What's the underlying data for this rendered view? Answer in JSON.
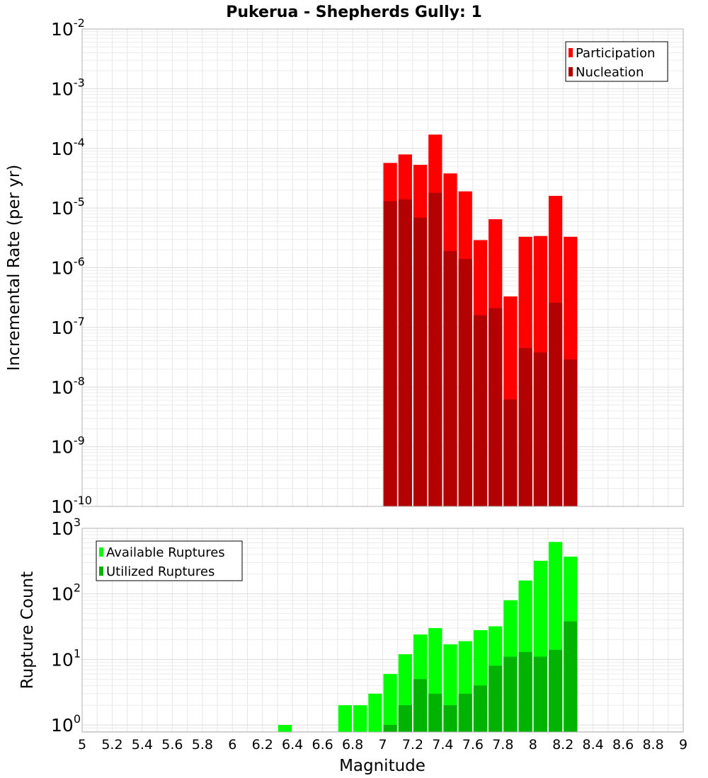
{
  "chart_data": {
    "type": "bar",
    "title": "Pukerua - Shepherds Gully: 1",
    "xlabel": "Magnitude",
    "x_ticks": [
      "5",
      "5.2",
      "5.4",
      "5.6",
      "5.8",
      "6",
      "6.2",
      "6.4",
      "6.6",
      "6.8",
      "7",
      "7.2",
      "7.4",
      "7.6",
      "7.8",
      "8",
      "8.2",
      "8.4",
      "8.6",
      "8.8",
      "9"
    ],
    "xlim": [
      5,
      9
    ],
    "bin_width": 0.1,
    "grid": true,
    "panels": [
      {
        "ylabel": "Incremental Rate (per yr)",
        "yscale": "log",
        "ylim": [
          1e-10,
          0.01
        ],
        "y_tick_exponents": [
          "-10",
          "-9",
          "-8",
          "-7",
          "-6",
          "-5",
          "-4",
          "-3",
          "-2"
        ],
        "legend_position": "top-right",
        "series": [
          {
            "name": "Participation",
            "color": "#ff0000",
            "x": [
              7.05,
              7.15,
              7.25,
              7.35,
              7.45,
              7.55,
              7.65,
              7.75,
              7.85,
              7.95,
              8.05,
              8.15,
              8.25
            ],
            "values": [
              5.7e-05,
              7.9e-05,
              5.3e-05,
              0.00017,
              3.8e-05,
              1.9e-05,
              2.9e-06,
              6.5e-06,
              3.3e-07,
              3.3e-06,
              3.4e-06,
              1.6e-05,
              3.3e-06
            ]
          },
          {
            "name": "Nucleation",
            "color": "#b30000",
            "x": [
              7.05,
              7.15,
              7.25,
              7.35,
              7.45,
              7.55,
              7.65,
              7.75,
              7.85,
              7.95,
              8.05,
              8.15,
              8.25
            ],
            "values": [
              1.3e-05,
              1.4e-05,
              6.9e-06,
              1.8e-05,
              1.9e-06,
              1.4e-06,
              1.6e-07,
              2.1e-07,
              6.2e-09,
              4.5e-08,
              3.8e-08,
              2.6e-07,
              2.9e-08
            ]
          }
        ]
      },
      {
        "ylabel": "Rupture Count",
        "yscale": "log",
        "ylim": [
          0.78,
          1000
        ],
        "y_tick_exponents": [
          "0",
          "1",
          "2",
          "3"
        ],
        "legend_position": "top-left",
        "series": [
          {
            "name": "Available Ruptures",
            "color": "#00ff00",
            "x": [
              6.35,
              6.75,
              6.85,
              6.95,
              7.05,
              7.15,
              7.25,
              7.35,
              7.45,
              7.55,
              7.65,
              7.75,
              7.85,
              7.95,
              8.05,
              8.15,
              8.25
            ],
            "values": [
              1,
              2,
              2,
              3,
              6,
              12,
              24,
              30,
              17,
              19,
              28,
              32,
              80,
              160,
              320,
              620,
              370
            ]
          },
          {
            "name": "Utilized Ruptures",
            "color": "#00b300",
            "x": [
              7.05,
              7.15,
              7.25,
              7.35,
              7.45,
              7.55,
              7.65,
              7.75,
              7.85,
              7.95,
              8.05,
              8.15,
              8.25
            ],
            "values": [
              1,
              2,
              5,
              3,
              2,
              3,
              4,
              8,
              11,
              13,
              11,
              14,
              38
            ]
          }
        ]
      }
    ]
  }
}
